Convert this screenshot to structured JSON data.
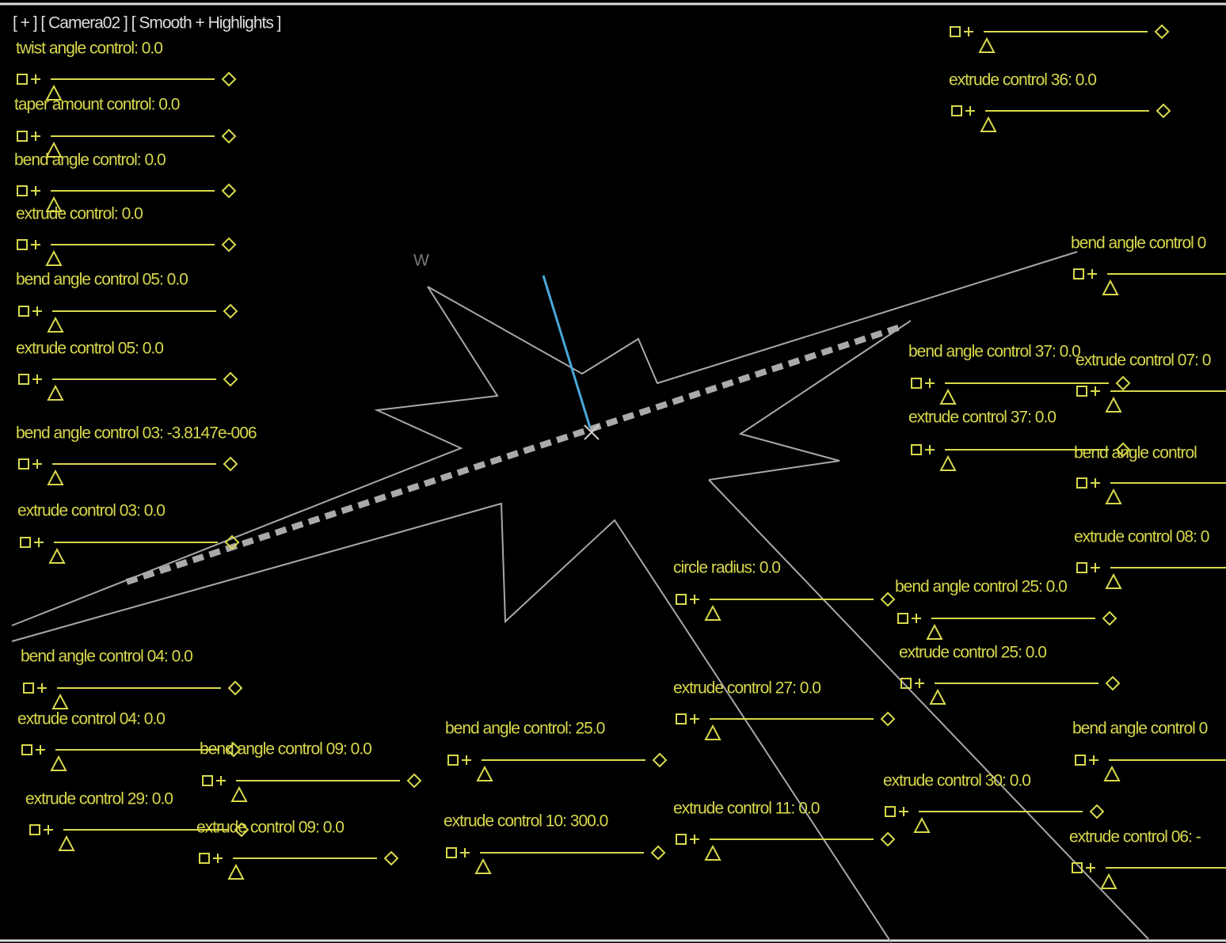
{
  "viewport": {
    "label": "[ + ] [ Camera02 ] [ Smooth + Highlights ]",
    "axis_label": "W"
  },
  "controls": [
    {
      "label": "twist angle control: 0.0"
    },
    {
      "label": "taper amount control: 0.0"
    },
    {
      "label": "bend angle control: 0.0"
    },
    {
      "label": "extrude control: 0.0"
    },
    {
      "label": "bend  angle control 05: 0.0"
    },
    {
      "label": "extrude control 05: 0.0"
    },
    {
      "label": "bend angle control 03: -3.8147e-006"
    },
    {
      "label": "extrude control 03: 0.0"
    },
    {
      "label": "bend angle control 04: 0.0"
    },
    {
      "label": "extrude control 04: 0.0"
    },
    {
      "label": "extrude control 29: 0.0"
    },
    {
      "label": "bend angle control 09: 0.0"
    },
    {
      "label": "extrude control 09: 0.0"
    },
    {
      "label": "bend angle control: 25.0"
    },
    {
      "label": "extrude control 10: 300.0"
    },
    {
      "label": "circle radius: 0.0"
    },
    {
      "label": "extrude control 27: 0.0"
    },
    {
      "label": "extrude control 11: 0.0"
    },
    {
      "label": "bend angle control 25: 0.0"
    },
    {
      "label": "extrude control 25: 0.0"
    },
    {
      "label": "extrude control 30: 0.0"
    },
    {
      "label": "extrude control 36: 0.0"
    },
    {
      "label": "bend angle control 37: 0.0"
    },
    {
      "label": "extrude control 37: 0.0"
    },
    {
      "label": "bend angle control 0"
    },
    {
      "label": "extrude control 07: 0"
    },
    {
      "label": "bend angle control"
    },
    {
      "label": "extrude control 08: 0"
    },
    {
      "label": "bend angle control 0"
    },
    {
      "label": "extrude control 06: -"
    }
  ]
}
